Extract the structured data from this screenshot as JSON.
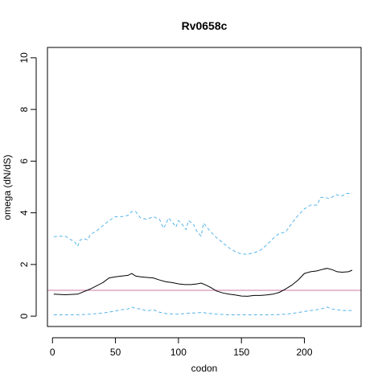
{
  "chart_data": {
    "type": "line",
    "title": "Rv0658c",
    "xlabel": "codon",
    "ylabel": "omega (dN/dS)",
    "xlim": [
      -4,
      245
    ],
    "ylim": [
      -0.4,
      10.4
    ],
    "x_ticks": [
      0,
      50,
      100,
      150,
      200
    ],
    "y_ticks": [
      0,
      2,
      4,
      6,
      8,
      10
    ],
    "grid": false,
    "reference_line": {
      "y": 1,
      "color": "#cc79a7"
    },
    "colors": {
      "mean": "#000000",
      "bounds": "#56b4e9"
    },
    "series": [
      {
        "key": "upper",
        "style": "dashed",
        "color": "#56b4e9",
        "points": [
          [
            1,
            3.08
          ],
          [
            10,
            3.1
          ],
          [
            15,
            2.95
          ],
          [
            18,
            2.85
          ],
          [
            20,
            2.7
          ],
          [
            22,
            2.95
          ],
          [
            25,
            3.0
          ],
          [
            28,
            2.95
          ],
          [
            30,
            3.15
          ],
          [
            35,
            3.3
          ],
          [
            40,
            3.5
          ],
          [
            45,
            3.7
          ],
          [
            50,
            3.85
          ],
          [
            55,
            3.85
          ],
          [
            60,
            3.9
          ],
          [
            63,
            4.05
          ],
          [
            66,
            4.05
          ],
          [
            70,
            3.8
          ],
          [
            75,
            3.75
          ],
          [
            80,
            3.85
          ],
          [
            85,
            3.75
          ],
          [
            88,
            3.4
          ],
          [
            90,
            3.55
          ],
          [
            92,
            3.8
          ],
          [
            95,
            3.65
          ],
          [
            98,
            3.45
          ],
          [
            100,
            3.7
          ],
          [
            103,
            3.55
          ],
          [
            106,
            3.35
          ],
          [
            108,
            3.7
          ],
          [
            112,
            3.55
          ],
          [
            115,
            3.25
          ],
          [
            118,
            3.1
          ],
          [
            120,
            3.6
          ],
          [
            125,
            3.3
          ],
          [
            130,
            3.05
          ],
          [
            135,
            2.85
          ],
          [
            140,
            2.65
          ],
          [
            145,
            2.5
          ],
          [
            150,
            2.4
          ],
          [
            155,
            2.4
          ],
          [
            160,
            2.45
          ],
          [
            165,
            2.55
          ],
          [
            170,
            2.75
          ],
          [
            175,
            3.0
          ],
          [
            180,
            3.2
          ],
          [
            185,
            3.25
          ],
          [
            190,
            3.6
          ],
          [
            195,
            3.9
          ],
          [
            200,
            4.15
          ],
          [
            205,
            4.3
          ],
          [
            210,
            4.3
          ],
          [
            213,
            4.6
          ],
          [
            216,
            4.6
          ],
          [
            220,
            4.55
          ],
          [
            225,
            4.7
          ],
          [
            230,
            4.65
          ],
          [
            233,
            4.75
          ],
          [
            238,
            4.75
          ]
        ]
      },
      {
        "key": "mean",
        "style": "solid",
        "color": "#000000",
        "points": [
          [
            1,
            0.85
          ],
          [
            10,
            0.83
          ],
          [
            20,
            0.85
          ],
          [
            30,
            1.05
          ],
          [
            40,
            1.3
          ],
          [
            45,
            1.48
          ],
          [
            50,
            1.52
          ],
          [
            55,
            1.55
          ],
          [
            60,
            1.58
          ],
          [
            63,
            1.65
          ],
          [
            66,
            1.55
          ],
          [
            70,
            1.52
          ],
          [
            75,
            1.5
          ],
          [
            80,
            1.48
          ],
          [
            85,
            1.4
          ],
          [
            90,
            1.33
          ],
          [
            95,
            1.3
          ],
          [
            100,
            1.25
          ],
          [
            105,
            1.22
          ],
          [
            110,
            1.22
          ],
          [
            115,
            1.25
          ],
          [
            118,
            1.28
          ],
          [
            122,
            1.2
          ],
          [
            126,
            1.1
          ],
          [
            130,
            0.98
          ],
          [
            135,
            0.9
          ],
          [
            140,
            0.85
          ],
          [
            145,
            0.82
          ],
          [
            150,
            0.78
          ],
          [
            155,
            0.77
          ],
          [
            160,
            0.8
          ],
          [
            165,
            0.8
          ],
          [
            170,
            0.82
          ],
          [
            175,
            0.85
          ],
          [
            180,
            0.92
          ],
          [
            185,
            1.05
          ],
          [
            190,
            1.2
          ],
          [
            195,
            1.4
          ],
          [
            200,
            1.65
          ],
          [
            205,
            1.72
          ],
          [
            210,
            1.75
          ],
          [
            215,
            1.82
          ],
          [
            218,
            1.85
          ],
          [
            222,
            1.8
          ],
          [
            226,
            1.72
          ],
          [
            230,
            1.7
          ],
          [
            235,
            1.72
          ],
          [
            238,
            1.78
          ]
        ]
      },
      {
        "key": "lower",
        "style": "dashed",
        "color": "#56b4e9",
        "points": [
          [
            1,
            0.05
          ],
          [
            20,
            0.05
          ],
          [
            30,
            0.08
          ],
          [
            40,
            0.12
          ],
          [
            50,
            0.2
          ],
          [
            55,
            0.25
          ],
          [
            60,
            0.28
          ],
          [
            63,
            0.35
          ],
          [
            66,
            0.3
          ],
          [
            70,
            0.28
          ],
          [
            75,
            0.2
          ],
          [
            80,
            0.25
          ],
          [
            85,
            0.15
          ],
          [
            90,
            0.1
          ],
          [
            95,
            0.08
          ],
          [
            100,
            0.08
          ],
          [
            105,
            0.1
          ],
          [
            110,
            0.12
          ],
          [
            115,
            0.12
          ],
          [
            118,
            0.15
          ],
          [
            122,
            0.12
          ],
          [
            130,
            0.08
          ],
          [
            140,
            0.05
          ],
          [
            150,
            0.05
          ],
          [
            160,
            0.05
          ],
          [
            170,
            0.05
          ],
          [
            180,
            0.06
          ],
          [
            190,
            0.1
          ],
          [
            200,
            0.18
          ],
          [
            205,
            0.22
          ],
          [
            210,
            0.25
          ],
          [
            215,
            0.3
          ],
          [
            218,
            0.35
          ],
          [
            222,
            0.28
          ],
          [
            226,
            0.25
          ],
          [
            230,
            0.22
          ],
          [
            238,
            0.22
          ]
        ]
      }
    ]
  }
}
